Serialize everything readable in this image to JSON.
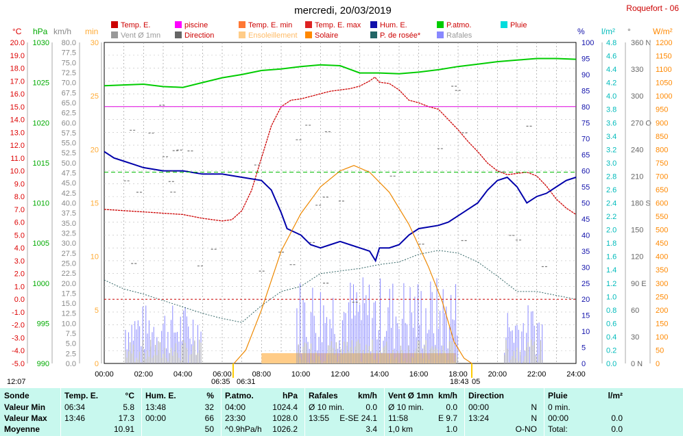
{
  "title": "mercredi, 20/03/2019",
  "station": "Roquefort - 06",
  "legend": [
    {
      "label": "Temp. E.",
      "color": "#cc0000"
    },
    {
      "label": "piscine",
      "color": "#ff00ff"
    },
    {
      "label": "Temp. E. min",
      "color": "#ff7733"
    },
    {
      "label": "Temp. E. max",
      "color": "#dd2222"
    },
    {
      "label": "Hum. E.",
      "color": "#1111aa"
    },
    {
      "label": "P.atmo.",
      "color": "#00cc00"
    },
    {
      "label": "Pluie",
      "color": "#00dddd"
    },
    {
      "label": "Vent Ø 1mn",
      "color": "#999999"
    },
    {
      "label": "Direction",
      "color": "#666666"
    },
    {
      "label": "Ensoleillement",
      "color": "#ffcc88"
    },
    {
      "label": "Solaire",
      "color": "#ff8800"
    },
    {
      "label": "P. de rosée*",
      "color": "#226666"
    },
    {
      "label": "Rafales",
      "color": "#8888ff"
    }
  ],
  "axes": {
    "celsius": {
      "unit": "°C",
      "ticks": [
        "20.0",
        "19.0",
        "18.0",
        "17.0",
        "16.0",
        "15.0",
        "14.0",
        "13.0",
        "12.0",
        "11.0",
        "10.0",
        "9.0",
        "8.0",
        "7.0",
        "6.0",
        "5.0",
        "4.0",
        "3.0",
        "2.0",
        "1.0",
        "0.0",
        "-1.0",
        "-2.0",
        "-3.0",
        "-4.0",
        "-5.0"
      ],
      "color": "#dd0000"
    },
    "hpa": {
      "unit": "hPa",
      "ticks": [
        "1030",
        "1025",
        "1020",
        "1015",
        "1010",
        "1005",
        "1000",
        "995",
        "990"
      ],
      "color": "#00aa00"
    },
    "kmh": {
      "unit": "km/h",
      "ticks": [
        "80.0",
        "77.5",
        "75.0",
        "72.5",
        "70.0",
        "67.5",
        "65.0",
        "62.5",
        "60.0",
        "57.5",
        "55.0",
        "52.5",
        "50.0",
        "47.5",
        "45.0",
        "42.5",
        "40.0",
        "37.5",
        "35.0",
        "32.5",
        "30.0",
        "27.5",
        "25.0",
        "22.5",
        "20.0",
        "17.5",
        "15.0",
        "12.5",
        "10.0",
        "7.5",
        "5.0",
        "2.5",
        "0.0"
      ],
      "color": "#888888"
    },
    "min": {
      "unit": "min",
      "ticks": [
        "30",
        "25",
        "20",
        "15",
        "10",
        "5",
        "0"
      ],
      "color": "#ffaa33"
    },
    "percent": {
      "unit": "%",
      "ticks": [
        "100",
        "95",
        "90",
        "85",
        "80",
        "75",
        "70",
        "65",
        "60",
        "55",
        "50",
        "45",
        "40",
        "35",
        "30",
        "25",
        "20",
        "15",
        "10",
        "5",
        "0"
      ],
      "color": "#1111aa"
    },
    "lm2": {
      "unit": "l/m²",
      "ticks": [
        "4.8",
        "4.6",
        "4.4",
        "4.2",
        "4.0",
        "3.8",
        "3.6",
        "3.4",
        "3.2",
        "3.0",
        "2.8",
        "2.6",
        "2.4",
        "2.2",
        "2.0",
        "1.8",
        "1.6",
        "1.4",
        "1.2",
        "1.0",
        "0.8",
        "0.6",
        "0.4",
        "0.2",
        "0.0"
      ],
      "color": "#00bbbb"
    },
    "deg": {
      "unit": "°",
      "ticks": [
        "360 N",
        "330",
        "300",
        "270 O",
        "240",
        "210",
        "180 S",
        "150",
        "120",
        "90 E",
        "60",
        "30",
        "0 N"
      ],
      "color": "#666666"
    },
    "wm2": {
      "unit": "W/m²",
      "ticks": [
        "1200",
        "1150",
        "1100",
        "1050",
        "1000",
        "950",
        "900",
        "850",
        "800",
        "750",
        "700",
        "650",
        "600",
        "550",
        "500",
        "450",
        "400",
        "350",
        "300",
        "250",
        "200",
        "150",
        "100",
        "50",
        "0"
      ],
      "color": "#ff8800"
    },
    "time": {
      "ticks": [
        "00:00",
        "02:00",
        "04:00",
        "06:00",
        "08:00",
        "10:00",
        "12:00",
        "14:00",
        "16:00",
        "18:00",
        "20:00",
        "22:00",
        "24:00"
      ]
    }
  },
  "time_markers": {
    "sunrise_left": "12:07",
    "sunrise": "06:35",
    "sunrise2": "06:31",
    "sunset": "18:43",
    "sunset_suffix": "05"
  },
  "chart_data": {
    "type": "line",
    "x_unit": "hour",
    "series": [
      {
        "name": "Temp. E.",
        "axis": "celsius",
        "points": [
          [
            0,
            7.0
          ],
          [
            1,
            6.9
          ],
          [
            2,
            6.8
          ],
          [
            3,
            6.7
          ],
          [
            4,
            6.6
          ],
          [
            5,
            6.3
          ],
          [
            6,
            6.1
          ],
          [
            6.5,
            6.2
          ],
          [
            7,
            6.9
          ],
          [
            7.5,
            8.5
          ],
          [
            8,
            11.0
          ],
          [
            8.5,
            13.5
          ],
          [
            9,
            15.0
          ],
          [
            9.5,
            15.5
          ],
          [
            10,
            15.6
          ],
          [
            10.5,
            15.8
          ],
          [
            11,
            16.0
          ],
          [
            11.5,
            16.2
          ],
          [
            12,
            16.3
          ],
          [
            12.5,
            16.4
          ],
          [
            13,
            16.6
          ],
          [
            13.5,
            17.0
          ],
          [
            13.77,
            17.3
          ],
          [
            14,
            16.9
          ],
          [
            14.5,
            16.8
          ],
          [
            15,
            16.3
          ],
          [
            15.5,
            15.5
          ],
          [
            16,
            15.3
          ],
          [
            16.5,
            15.0
          ],
          [
            17,
            14.8
          ],
          [
            17.5,
            14.0
          ],
          [
            18,
            13.2
          ],
          [
            18.5,
            12.3
          ],
          [
            19,
            11.5
          ],
          [
            19.5,
            10.6
          ],
          [
            20,
            10.0
          ],
          [
            20.5,
            9.7
          ],
          [
            21,
            9.8
          ],
          [
            21.5,
            9.9
          ],
          [
            22,
            9.6
          ],
          [
            22.5,
            8.8
          ],
          [
            23,
            7.8
          ],
          [
            23.5,
            7.1
          ],
          [
            24,
            6.6
          ]
        ]
      },
      {
        "name": "piscine",
        "axis": "celsius",
        "points": [
          [
            0,
            15.0
          ],
          [
            24,
            15.0
          ]
        ]
      },
      {
        "name": "Hum. E.",
        "axis": "percent",
        "points": [
          [
            0,
            66
          ],
          [
            0.5,
            64
          ],
          [
            1,
            63
          ],
          [
            1.5,
            62
          ],
          [
            2,
            61
          ],
          [
            3,
            60
          ],
          [
            4,
            60
          ],
          [
            5,
            59
          ],
          [
            6,
            59
          ],
          [
            7,
            58
          ],
          [
            8,
            57
          ],
          [
            8.5,
            54
          ],
          [
            9,
            47
          ],
          [
            9.3,
            42
          ],
          [
            10,
            40
          ],
          [
            10.5,
            37
          ],
          [
            11,
            36
          ],
          [
            11.5,
            37
          ],
          [
            12,
            38
          ],
          [
            12.5,
            37
          ],
          [
            13,
            36
          ],
          [
            13.5,
            35
          ],
          [
            13.8,
            32
          ],
          [
            14,
            36
          ],
          [
            14.5,
            36
          ],
          [
            15,
            37
          ],
          [
            15.5,
            40
          ],
          [
            16,
            42
          ],
          [
            17,
            43
          ],
          [
            17.5,
            44
          ],
          [
            18,
            46
          ],
          [
            18.5,
            48
          ],
          [
            19,
            50
          ],
          [
            19.5,
            54
          ],
          [
            20,
            57
          ],
          [
            20.5,
            58
          ],
          [
            21,
            55
          ],
          [
            21.5,
            50
          ],
          [
            22,
            52
          ],
          [
            22.5,
            53
          ],
          [
            23,
            55
          ],
          [
            23.5,
            57
          ],
          [
            24,
            58
          ]
        ]
      },
      {
        "name": "P.atmo.",
        "axis": "hpa",
        "points": [
          [
            0,
            1024.6
          ],
          [
            1,
            1024.7
          ],
          [
            2,
            1024.8
          ],
          [
            3,
            1024.5
          ],
          [
            4,
            1024.4
          ],
          [
            5,
            1025.0
          ],
          [
            6,
            1025.6
          ],
          [
            7,
            1026.0
          ],
          [
            8,
            1026.5
          ],
          [
            9,
            1026.7
          ],
          [
            10,
            1027.0
          ],
          [
            11,
            1027.2
          ],
          [
            12,
            1027.1
          ],
          [
            13,
            1026.2
          ],
          [
            14,
            1026.2
          ],
          [
            15,
            1026.1
          ],
          [
            16,
            1026.3
          ],
          [
            17,
            1026.6
          ],
          [
            18,
            1027.0
          ],
          [
            19,
            1027.3
          ],
          [
            20,
            1027.6
          ],
          [
            21,
            1027.8
          ],
          [
            22,
            1028.0
          ],
          [
            23,
            1028.0
          ],
          [
            24,
            1027.9
          ]
        ]
      },
      {
        "name": "P. de rosée*",
        "axis": "celsius",
        "points": [
          [
            0,
            1.5
          ],
          [
            1,
            0.8
          ],
          [
            2,
            0.4
          ],
          [
            3,
            -0.1
          ],
          [
            4,
            -0.6
          ],
          [
            5,
            -1.1
          ],
          [
            6,
            -1.5
          ],
          [
            7,
            -1.8
          ],
          [
            8,
            -0.5
          ],
          [
            9,
            0.6
          ],
          [
            10,
            1.0
          ],
          [
            11,
            2.0
          ],
          [
            12,
            2.2
          ],
          [
            13,
            2.4
          ],
          [
            14,
            2.7
          ],
          [
            15,
            2.9
          ],
          [
            16,
            3.5
          ],
          [
            17,
            3.8
          ],
          [
            18,
            3.6
          ],
          [
            19,
            2.9
          ],
          [
            20,
            1.8
          ],
          [
            21,
            0.6
          ],
          [
            22,
            0.6
          ],
          [
            23,
            0.3
          ],
          [
            24,
            0.0
          ]
        ]
      },
      {
        "name": "Solaire",
        "axis": "wm2",
        "points": [
          [
            6.6,
            0
          ],
          [
            7.2,
            50
          ],
          [
            8,
            200
          ],
          [
            9,
            420
          ],
          [
            10,
            560
          ],
          [
            11,
            660
          ],
          [
            12,
            720
          ],
          [
            12.7,
            740
          ],
          [
            13.5,
            715
          ],
          [
            14.5,
            640
          ],
          [
            15.5,
            520
          ],
          [
            16.5,
            360
          ],
          [
            17.2,
            230
          ],
          [
            17.8,
            80
          ],
          [
            18.3,
            20
          ],
          [
            18.7,
            0
          ]
        ]
      },
      {
        "name": "Température 0°",
        "axis": "celsius",
        "points": [
          [
            0,
            0.0
          ],
          [
            24,
            0.0
          ]
        ]
      },
      {
        "name": "Seuil",
        "axis": "celsius",
        "points": [
          [
            0,
            9.9
          ],
          [
            24,
            9.9
          ]
        ]
      }
    ]
  },
  "table": {
    "columns": [
      {
        "header": "Sonde",
        "rows": [
          "Valeur Min",
          "Valeur Max",
          "Moyenne"
        ]
      },
      {
        "header": "Temp. E.",
        "unit": "°C",
        "rows": [
          [
            "06:34",
            "5.8"
          ],
          [
            "13:46",
            "17.3"
          ],
          [
            "",
            "10.91"
          ]
        ]
      },
      {
        "header": "Hum. E.",
        "unit": "%",
        "rows": [
          [
            "13:48",
            "32"
          ],
          [
            "00:00",
            "66"
          ],
          [
            "",
            "50"
          ]
        ]
      },
      {
        "header": "P.atmo.",
        "unit": "hPa",
        "rows": [
          [
            "04:00",
            "1024.4"
          ],
          [
            "23:30",
            "1028.0"
          ],
          [
            "^0.9hPa/h",
            "1026.2"
          ]
        ]
      },
      {
        "header": "Rafales",
        "unit": "km/h",
        "rows": [
          [
            "Ø 10 min.",
            "0.0"
          ],
          [
            "13:55",
            "E-SE 24.1"
          ],
          [
            "",
            "3.4"
          ]
        ]
      },
      {
        "header": "Vent Ø 1mn",
        "unit": "km/h",
        "rows": [
          [
            "Ø 10 min.",
            "0.0"
          ],
          [
            "11:58",
            "E 9.7"
          ],
          [
            "1,0 km",
            "1.0"
          ]
        ]
      },
      {
        "header": "Direction",
        "unit": "",
        "rows": [
          [
            "00:00",
            "N"
          ],
          [
            "13:24",
            "N"
          ],
          [
            "",
            "O-NO"
          ]
        ]
      },
      {
        "header": "Pluie",
        "unit": "l/m²",
        "rows": [
          [
            "0 min.",
            ""
          ],
          [
            "00:00",
            "0.0"
          ],
          [
            "Total:",
            "0.0"
          ]
        ]
      }
    ]
  }
}
